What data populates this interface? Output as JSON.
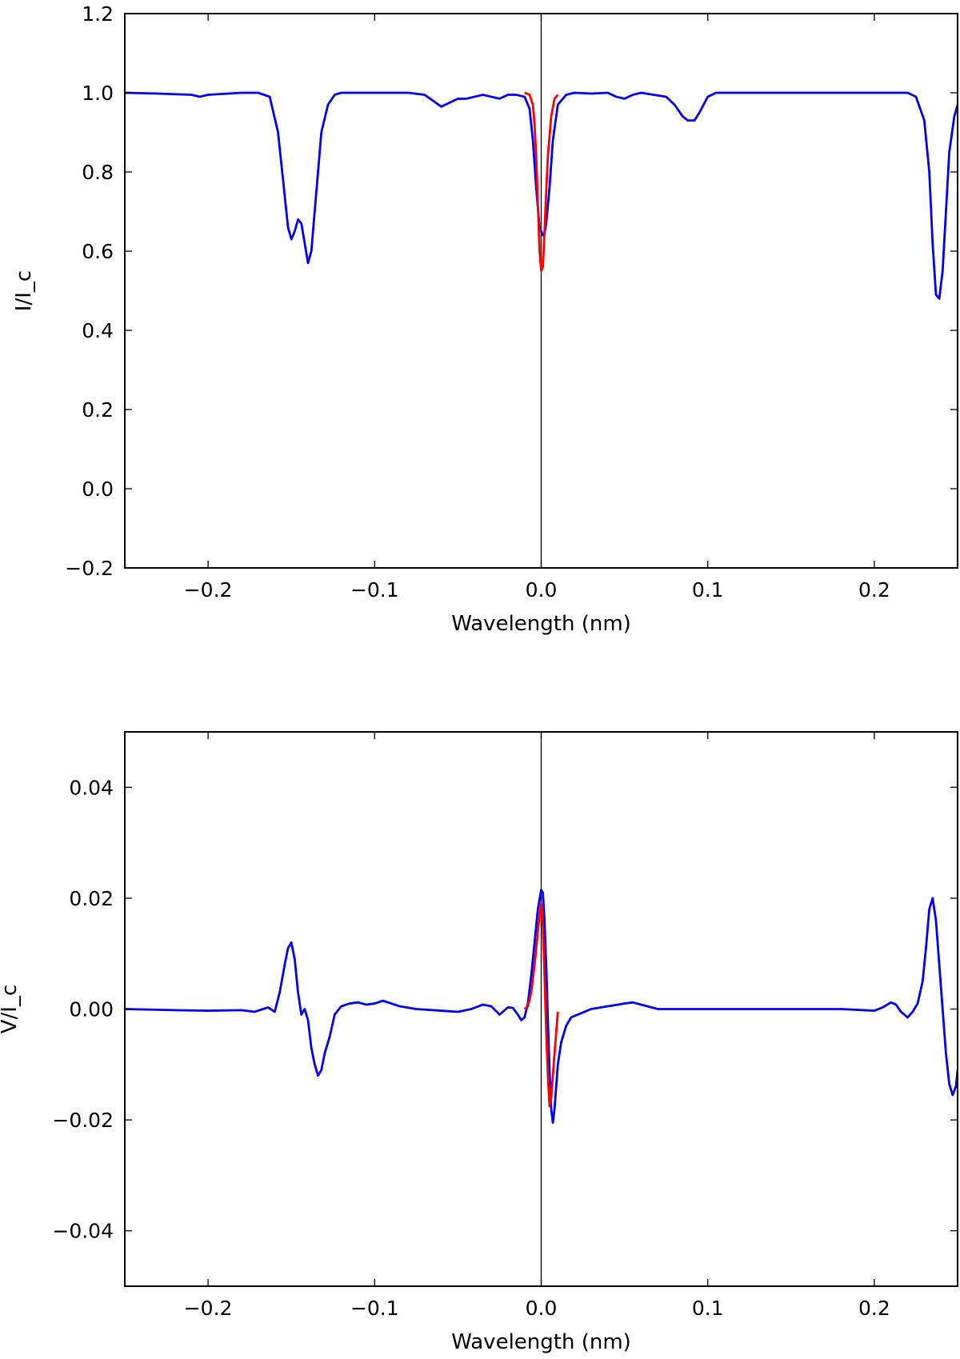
{
  "chart_data": [
    {
      "type": "line",
      "xlabel": "Wavelength (nm)",
      "ylabel": "I/I_c",
      "xlim": [
        -0.25,
        0.25
      ],
      "ylim": [
        -0.2,
        1.2
      ],
      "x_ticks": [
        -0.2,
        -0.1,
        0.0,
        0.1,
        0.2
      ],
      "x_tick_labels": [
        "−0.2",
        "−0.1",
        "0.0",
        "0.1",
        "0.2"
      ],
      "y_ticks": [
        -0.2,
        0.0,
        0.2,
        0.4,
        0.6,
        0.8,
        1.0,
        1.2
      ],
      "y_tick_labels": [
        "−0.2",
        "0.0",
        "0.2",
        "0.4",
        "0.6",
        "0.8",
        "1.0",
        "1.2"
      ],
      "vline_x": 0.0,
      "grid": false,
      "series": [
        {
          "color": "#0000ff",
          "x": [
            -0.25,
            -0.23,
            -0.21,
            -0.205,
            -0.2,
            -0.18,
            -0.17,
            -0.163,
            -0.158,
            -0.155,
            -0.152,
            -0.15,
            -0.148,
            -0.146,
            -0.144,
            -0.142,
            -0.14,
            -0.138,
            -0.135,
            -0.132,
            -0.128,
            -0.124,
            -0.12,
            -0.1,
            -0.08,
            -0.07,
            -0.065,
            -0.06,
            -0.055,
            -0.05,
            -0.045,
            -0.04,
            -0.035,
            -0.03,
            -0.025,
            -0.02,
            -0.015,
            -0.01,
            -0.007,
            -0.005,
            -0.003,
            -0.001,
            0.001,
            0.002,
            0.003,
            0.005,
            0.007,
            0.01,
            0.015,
            0.02,
            0.03,
            0.04,
            0.045,
            0.05,
            0.055,
            0.06,
            0.075,
            0.08,
            0.085,
            0.088,
            0.092,
            0.095,
            0.1,
            0.105,
            0.12,
            0.15,
            0.18,
            0.2,
            0.22,
            0.225,
            0.23,
            0.233,
            0.235,
            0.237,
            0.239,
            0.241,
            0.243,
            0.245,
            0.248,
            0.25
          ],
          "y": [
            1.0,
            0.998,
            0.995,
            0.99,
            0.995,
            1.0,
            1.0,
            0.99,
            0.9,
            0.78,
            0.66,
            0.63,
            0.65,
            0.68,
            0.67,
            0.62,
            0.57,
            0.6,
            0.75,
            0.9,
            0.97,
            0.995,
            1.0,
            1.0,
            1.0,
            0.995,
            0.98,
            0.965,
            0.975,
            0.985,
            0.985,
            0.99,
            0.995,
            0.99,
            0.985,
            0.995,
            0.995,
            0.99,
            0.96,
            0.88,
            0.76,
            0.66,
            0.64,
            0.645,
            0.67,
            0.76,
            0.88,
            0.97,
            0.995,
            1.0,
            0.998,
            1.0,
            0.99,
            0.985,
            0.995,
            1.0,
            0.99,
            0.97,
            0.94,
            0.93,
            0.93,
            0.95,
            0.99,
            1.0,
            1.0,
            1.0,
            1.0,
            1.0,
            1.0,
            0.99,
            0.93,
            0.8,
            0.62,
            0.49,
            0.48,
            0.55,
            0.7,
            0.85,
            0.94,
            0.97
          ]
        },
        {
          "color": "#ff0000",
          "x": [
            -0.01,
            -0.007,
            -0.005,
            -0.004,
            -0.003,
            -0.002,
            -0.001,
            0.0,
            0.001,
            0.002,
            0.003,
            0.004,
            0.006,
            0.008,
            0.01
          ],
          "y": [
            1.0,
            0.995,
            0.97,
            0.92,
            0.84,
            0.72,
            0.6,
            0.55,
            0.56,
            0.65,
            0.75,
            0.84,
            0.94,
            0.985,
            0.995
          ]
        }
      ]
    },
    {
      "type": "line",
      "xlabel": "Wavelength (nm)",
      "ylabel": "V/I_c",
      "xlim": [
        -0.25,
        0.25
      ],
      "ylim": [
        -0.05,
        0.05
      ],
      "x_ticks": [
        -0.2,
        -0.1,
        0.0,
        0.1,
        0.2
      ],
      "x_tick_labels": [
        "−0.2",
        "−0.1",
        "0.0",
        "0.1",
        "0.2"
      ],
      "y_ticks": [
        -0.04,
        -0.02,
        0.0,
        0.02,
        0.04
      ],
      "y_tick_labels": [
        "−0.04",
        "−0.02",
        "0.00",
        "0.02",
        "0.04"
      ],
      "vline_x": 0.0,
      "grid": false,
      "series": [
        {
          "color": "#0000ff",
          "x": [
            -0.25,
            -0.22,
            -0.2,
            -0.18,
            -0.172,
            -0.167,
            -0.164,
            -0.16,
            -0.157,
            -0.154,
            -0.152,
            -0.15,
            -0.148,
            -0.146,
            -0.144,
            -0.142,
            -0.14,
            -0.138,
            -0.136,
            -0.134,
            -0.132,
            -0.13,
            -0.127,
            -0.124,
            -0.12,
            -0.115,
            -0.11,
            -0.105,
            -0.1,
            -0.095,
            -0.09,
            -0.085,
            -0.075,
            -0.06,
            -0.05,
            -0.042,
            -0.035,
            -0.03,
            -0.025,
            -0.02,
            -0.017,
            -0.014,
            -0.012,
            -0.01,
            -0.008,
            -0.006,
            -0.004,
            -0.002,
            0.0,
            0.001,
            0.002,
            0.003,
            0.004,
            0.005,
            0.006,
            0.007,
            0.008,
            0.01,
            0.012,
            0.015,
            0.018,
            0.022,
            0.03,
            0.04,
            0.05,
            0.055,
            0.06,
            0.07,
            0.09,
            0.12,
            0.15,
            0.18,
            0.2,
            0.205,
            0.21,
            0.213,
            0.216,
            0.22,
            0.223,
            0.226,
            0.229,
            0.231,
            0.233,
            0.235,
            0.237,
            0.239,
            0.241,
            0.243,
            0.245,
            0.247,
            0.249,
            0.25
          ],
          "y": [
            0.0,
            -0.0002,
            -0.0003,
            -0.0002,
            -0.0005,
            0.0,
            0.0003,
            -0.0005,
            0.003,
            0.008,
            0.011,
            0.012,
            0.009,
            0.003,
            -0.001,
            0.0,
            -0.002,
            -0.007,
            -0.01,
            -0.012,
            -0.011,
            -0.008,
            -0.005,
            -0.001,
            0.0005,
            0.001,
            0.0012,
            0.0008,
            0.001,
            0.0015,
            0.001,
            0.0005,
            0.0,
            -0.0003,
            -0.0005,
            0.0,
            0.0008,
            0.0005,
            -0.001,
            0.0003,
            0.0002,
            -0.001,
            -0.002,
            -0.0015,
            0.001,
            0.006,
            0.012,
            0.018,
            0.0215,
            0.021,
            0.016,
            0.008,
            -0.002,
            -0.011,
            -0.018,
            -0.0205,
            -0.018,
            -0.01,
            -0.006,
            -0.003,
            -0.0015,
            -0.001,
            0.0,
            0.0005,
            0.001,
            0.0012,
            0.0008,
            0.0,
            0.0,
            0.0,
            0.0,
            0.0,
            -0.0003,
            0.0003,
            0.0012,
            0.0008,
            -0.0005,
            -0.0015,
            -0.0005,
            0.001,
            0.005,
            0.011,
            0.018,
            0.02,
            0.016,
            0.008,
            0.0,
            -0.008,
            -0.0135,
            -0.0155,
            -0.014,
            -0.011
          ]
        },
        {
          "color": "#ff0000",
          "x": [
            -0.01,
            -0.008,
            -0.006,
            -0.004,
            -0.002,
            -0.001,
            0.0,
            0.001,
            0.002,
            0.003,
            0.004,
            0.005,
            0.006,
            0.008,
            0.01
          ],
          "y": [
            0.0,
            0.0005,
            0.003,
            0.008,
            0.014,
            0.017,
            0.019,
            0.015,
            0.006,
            -0.004,
            -0.012,
            -0.0175,
            -0.016,
            -0.008,
            -0.0005
          ]
        }
      ]
    }
  ]
}
